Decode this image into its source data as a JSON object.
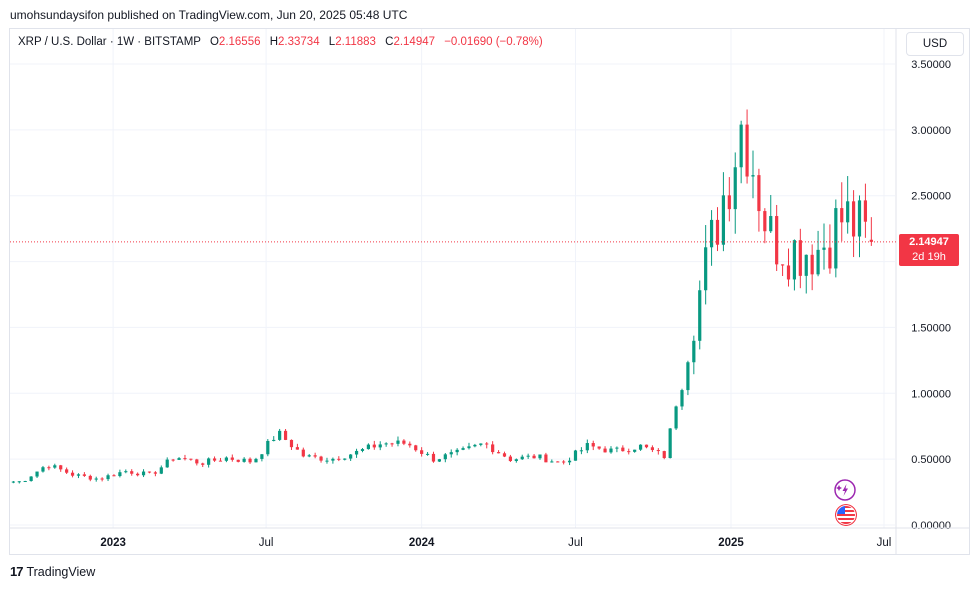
{
  "header": {
    "published": "umohsundaysifon published on TradingView.com, Jun 20, 2025 05:48 UTC"
  },
  "legend": {
    "symbol": "XRP / U.S. Dollar · 1W · BITSTAMP",
    "o_label": "O",
    "o": "2.16556",
    "h_label": "H",
    "h": "2.33734",
    "l_label": "L",
    "l": "2.11883",
    "c_label": "C",
    "c": "2.14947",
    "change": "−0.01690 (−0.78%)"
  },
  "currency_button": "USD",
  "price_tag": {
    "price": "2.14947",
    "countdown": "2d 19h"
  },
  "footer": {
    "brand": "TradingView",
    "logo_mark": "17"
  },
  "icons": {
    "event_icon": "sparkle-event-icon",
    "flag_icon": "us-flag-icon"
  },
  "colors": {
    "up": "#089981",
    "down": "#f23645",
    "grid": "#f0f3fa",
    "text": "#131722"
  },
  "chart_data": {
    "type": "candlestick",
    "symbol": "XRPUSD",
    "interval": "1W",
    "x_range": [
      "2022-09-01",
      "2025-07-14"
    ],
    "ylim": [
      0.0,
      3.6
    ],
    "y_ticks": [
      "0.00000",
      "0.50000",
      "1.00000",
      "1.50000",
      "2.00000",
      "2.50000",
      "3.00000",
      "3.50000"
    ],
    "x_ticks": [
      {
        "label": "2023",
        "date": "2023-01-01"
      },
      {
        "label": "Jul",
        "date": "2023-07-01"
      },
      {
        "label": "2024",
        "date": "2024-01-01"
      },
      {
        "label": "Jul",
        "date": "2024-07-01"
      },
      {
        "label": "2025",
        "date": "2025-01-01"
      },
      {
        "label": "Jul",
        "date": "2025-07-01"
      }
    ],
    "last_price": 2.14947,
    "gridlines": true,
    "candles_by_period": [
      {
        "date": "2022-09",
        "close": 0.33
      },
      {
        "date": "2022-10",
        "close": 0.46
      },
      {
        "date": "2022-11",
        "close": 0.38
      },
      {
        "date": "2022-12",
        "close": 0.35
      },
      {
        "date": "2023-01",
        "close": 0.41
      },
      {
        "date": "2023-02",
        "close": 0.38
      },
      {
        "date": "2023-03",
        "close": 0.52
      },
      {
        "date": "2023-04",
        "close": 0.47
      },
      {
        "date": "2023-05",
        "close": 0.51
      },
      {
        "date": "2023-06",
        "close": 0.48
      },
      {
        "date": "2023-07",
        "close": 0.7
      },
      {
        "date": "2023-08",
        "close": 0.52
      },
      {
        "date": "2023-09",
        "close": 0.5
      },
      {
        "date": "2023-10",
        "close": 0.55
      },
      {
        "date": "2023-11",
        "close": 0.62
      },
      {
        "date": "2023-12",
        "close": 0.62
      },
      {
        "date": "2024-01",
        "close": 0.5
      },
      {
        "date": "2024-02",
        "close": 0.55
      },
      {
        "date": "2024-03",
        "close": 0.62
      },
      {
        "date": "2024-04",
        "close": 0.5
      },
      {
        "date": "2024-05",
        "close": 0.52
      },
      {
        "date": "2024-06",
        "close": 0.47
      },
      {
        "date": "2024-07",
        "close": 0.6
      },
      {
        "date": "2024-08",
        "close": 0.56
      },
      {
        "date": "2024-09",
        "close": 0.6
      },
      {
        "date": "2024-10",
        "close": 0.52
      },
      {
        "date": "2024-11",
        "close": 1.5
      },
      {
        "date": "2024-12",
        "close": 2.3
      },
      {
        "date": "2025-01",
        "close": 3.1
      },
      {
        "date": "2025-02",
        "close": 2.2
      },
      {
        "date": "2025-03",
        "close": 2.1
      },
      {
        "date": "2025-04",
        "close": 2.1
      },
      {
        "date": "2025-05",
        "close": 2.35
      },
      {
        "date": "2025-06",
        "close": 2.15
      }
    ]
  }
}
